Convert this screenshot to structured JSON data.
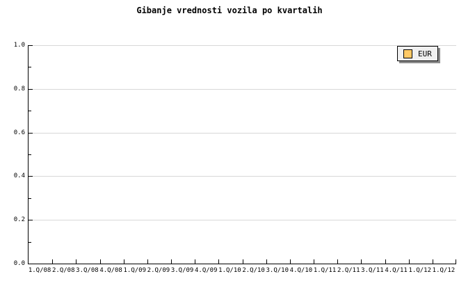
{
  "page": {
    "background": "#ffffff"
  },
  "chart_data": {
    "type": "line",
    "title": "Gibanje vrednosti vozila po kvartalih",
    "categories": [
      "1.Q/08",
      "2.Q/08",
      "3.Q/08",
      "4.Q/08",
      "1.Q/09",
      "2.Q/09",
      "3.Q/09",
      "4.Q/09",
      "1.Q/10",
      "2.Q/10",
      "3.Q/10",
      "4.Q/10",
      "1.Q/11",
      "2.Q/11",
      "3.Q/11",
      "4.Q/11",
      "1.Q/12",
      "1.Q/12"
    ],
    "series": [
      {
        "name": "EUR",
        "color": "#ffc966",
        "values": []
      }
    ],
    "xlabel": "",
    "ylabel": "",
    "ylim": [
      0.0,
      1.0
    ],
    "y_tick_labels": [
      "0.0",
      "0.2",
      "0.4",
      "0.6",
      "0.8",
      "1.0"
    ],
    "y_minor_tick_step": 0.1,
    "grid": true,
    "legend_position": "top-right"
  },
  "legend": {
    "items": [
      {
        "label": "EUR",
        "swatch_color": "#ffc966"
      }
    ]
  },
  "colors": {
    "axis": "#000000",
    "gridline": "#d8d8d8",
    "text": "#000000",
    "legend_background": "#f0f0f0",
    "legend_border": "#000000",
    "legend_shadow": "#8c8c8c",
    "series_eur": "#ffc966"
  }
}
